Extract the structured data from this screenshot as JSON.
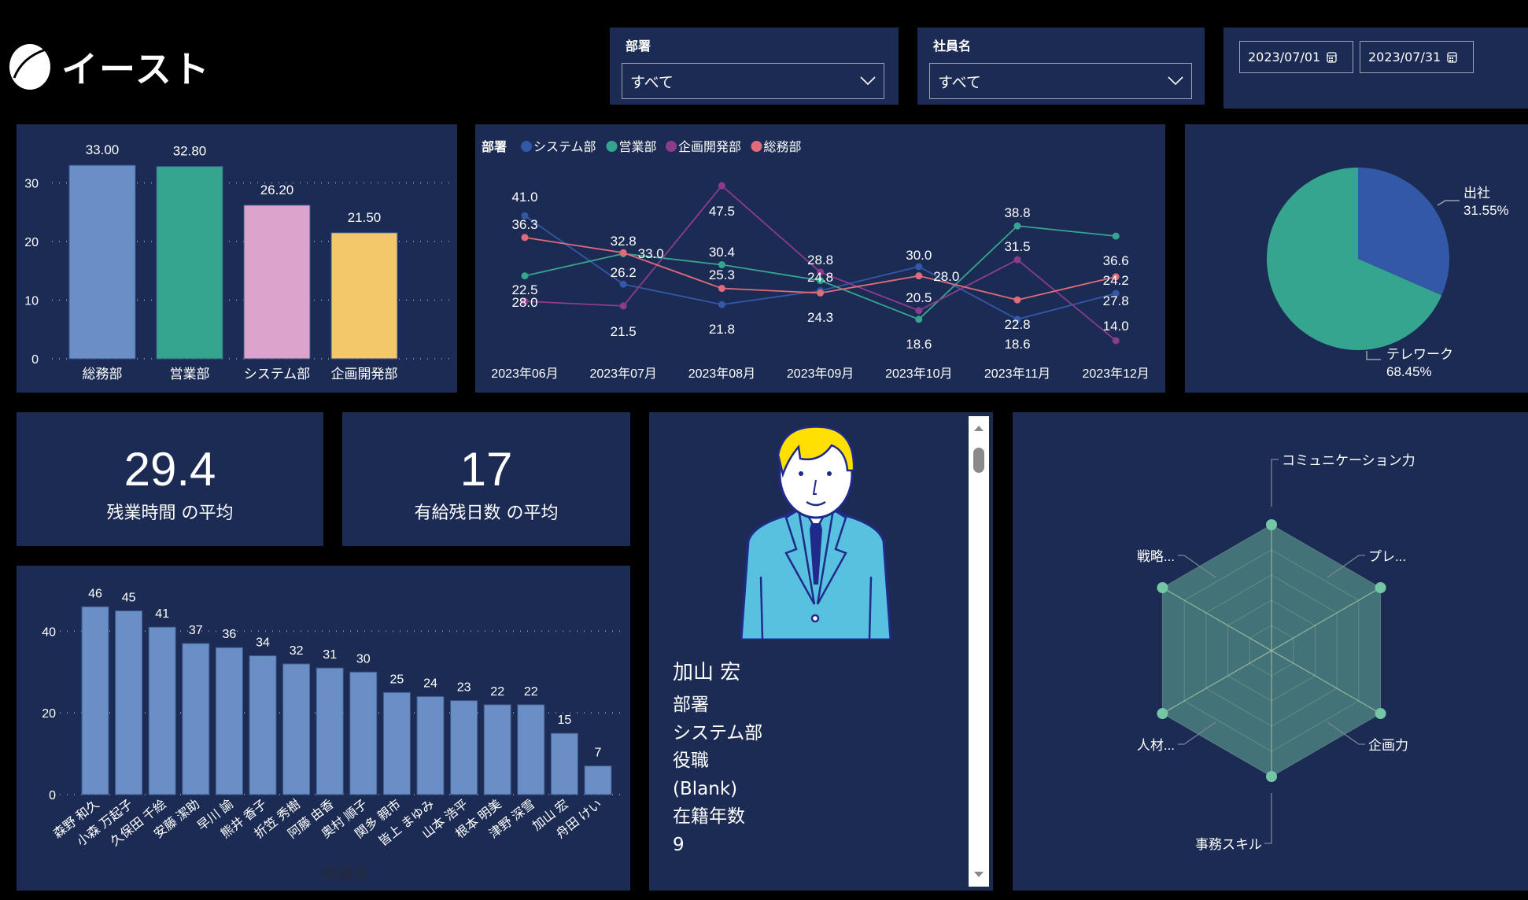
{
  "header": {
    "logo_text": "イースト"
  },
  "filters": {
    "department": {
      "title": "部署",
      "selected": "すべて"
    },
    "employee": {
      "title": "社員名",
      "selected": "すべて"
    },
    "date_range": {
      "start": "2023/07/01",
      "end": "2023/07/31"
    }
  },
  "kpis": {
    "overtime": {
      "value": "29.4",
      "label": "残業時間 の平均"
    },
    "paid_leave": {
      "value": "17",
      "label": "有給残日数 の平均"
    }
  },
  "profile": {
    "name": "加山 宏",
    "fields": [
      "部署",
      "システム部",
      "役職",
      "(Blank)",
      "在籍年数",
      "9"
    ]
  },
  "chart_data": [
    {
      "type": "bar",
      "title": "",
      "categories": [
        "総務部",
        "営業部",
        "システム部",
        "企画開発部"
      ],
      "values": [
        33.0,
        32.8,
        26.2,
        21.5
      ],
      "value_labels": [
        "33.00",
        "32.80",
        "26.20",
        "21.50"
      ],
      "colors": [
        "#6a8fc7",
        "#36a590",
        "#dca3cc",
        "#f3c86b"
      ],
      "yticks": [
        "0",
        "10",
        "20",
        "30"
      ],
      "ylim": [
        0,
        35
      ],
      "grid": "dotted"
    },
    {
      "type": "line",
      "legend_title": "部署",
      "categories": [
        "2023年06月",
        "2023年07月",
        "2023年08月",
        "2023年09月",
        "2023年10月",
        "2023年11月",
        "2023年12月"
      ],
      "series": [
        {
          "name": "システム部",
          "color": "#3358a8",
          "values": [
            41.0,
            26.2,
            21.8,
            24.8,
            30.0,
            18.6,
            24.2
          ]
        },
        {
          "name": "営業部",
          "color": "#36a590",
          "values": [
            28.0,
            32.8,
            30.4,
            27.0,
            18.6,
            38.8,
            36.6
          ]
        },
        {
          "name": "企画開発部",
          "color": "#8b3d8c",
          "values": [
            22.5,
            21.5,
            47.5,
            28.8,
            20.5,
            31.5,
            14.0
          ]
        },
        {
          "name": "総務部",
          "color": "#e06b7a",
          "values": [
            36.3,
            33.0,
            25.3,
            24.3,
            28.0,
            22.8,
            27.8
          ]
        }
      ],
      "labels": [
        {
          "i": 0,
          "y": 41.0,
          "text": "41.0",
          "dy": 0
        }
      ],
      "legend_position": "top-left"
    },
    {
      "type": "pie",
      "slices": [
        {
          "name": "出社",
          "value": 31.55,
          "label": "31.55%",
          "color": "#3358a8"
        },
        {
          "name": "テレワーク",
          "value": 68.45,
          "label": "68.45%",
          "color": "#36a590"
        }
      ]
    },
    {
      "type": "bar",
      "xlabel": "社員名",
      "categories": [
        "森野 和久",
        "小森 万起子",
        "久保田 千絵",
        "安藤 潔助",
        "早川 諭",
        "熊井 香子",
        "折笠 秀樹",
        "阿藤 由香",
        "奥村 順子",
        "関多 親市",
        "皆上 まゆみ",
        "山本 浩平",
        "根本 明美",
        "津野 深雪",
        "加山 宏",
        "舟田 けい"
      ],
      "values": [
        46,
        45,
        41,
        37,
        36,
        34,
        32,
        31,
        30,
        25,
        24,
        23,
        22,
        22,
        15,
        7
      ],
      "color": "#6a8fc7",
      "yticks": [
        "0",
        "20",
        "40"
      ],
      "ylim": [
        0,
        50
      ],
      "grid": "dotted"
    },
    {
      "type": "radar",
      "axes": [
        "コミュニケーション力",
        "プレ...",
        "企画力",
        "事務スキル",
        "人材...",
        "戦略..."
      ],
      "values": [
        5,
        5,
        5,
        5,
        5,
        5
      ],
      "rings": 5,
      "color": "#4a7f80",
      "point_color": "#74c6a5"
    }
  ]
}
